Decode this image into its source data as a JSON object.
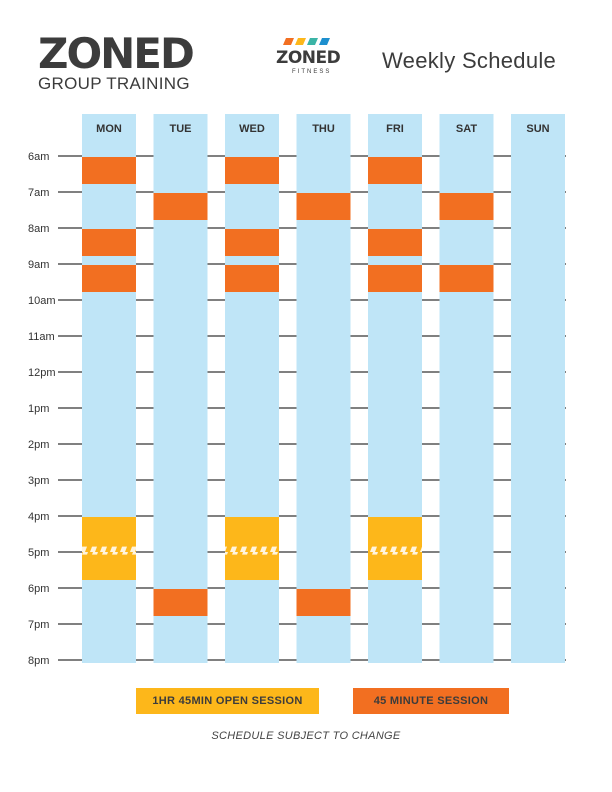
{
  "brand": {
    "title": "ZONED",
    "subtitle": "GROUP TRAINING"
  },
  "logo": {
    "word": "ZONED",
    "sub": "FITNESS",
    "stripe_colors": [
      "#f26f21",
      "#fdb71a",
      "#3bb4a6",
      "#1d8fce"
    ]
  },
  "page_title": "Weekly Schedule",
  "colors": {
    "column": "#bfe5f7",
    "session_45": "#f26f21",
    "open_session": "#fdb71a",
    "grid_line": "#000000"
  },
  "chart_data": {
    "type": "table",
    "days": [
      "MON",
      "TUE",
      "WED",
      "THU",
      "FRI",
      "SAT",
      "SUN"
    ],
    "times": [
      "6am",
      "7am",
      "8am",
      "9am",
      "10am",
      "11am",
      "12pm",
      "1pm",
      "2pm",
      "3pm",
      "4pm",
      "5pm",
      "6pm",
      "7pm",
      "8pm"
    ],
    "sessions": [
      {
        "day": "MON",
        "type": "45_minute",
        "start": 6.0,
        "end": 6.75
      },
      {
        "day": "MON",
        "type": "45_minute",
        "start": 8.0,
        "end": 8.75
      },
      {
        "day": "MON",
        "type": "45_minute",
        "start": 9.0,
        "end": 9.75
      },
      {
        "day": "MON",
        "type": "open",
        "start": 16.0,
        "end": 17.75
      },
      {
        "day": "TUE",
        "type": "45_minute",
        "start": 7.0,
        "end": 7.75
      },
      {
        "day": "TUE",
        "type": "45_minute",
        "start": 18.0,
        "end": 18.75
      },
      {
        "day": "WED",
        "type": "45_minute",
        "start": 6.0,
        "end": 6.75
      },
      {
        "day": "WED",
        "type": "45_minute",
        "start": 8.0,
        "end": 8.75
      },
      {
        "day": "WED",
        "type": "45_minute",
        "start": 9.0,
        "end": 9.75
      },
      {
        "day": "WED",
        "type": "open",
        "start": 16.0,
        "end": 17.75
      },
      {
        "day": "THU",
        "type": "45_minute",
        "start": 7.0,
        "end": 7.75
      },
      {
        "day": "THU",
        "type": "45_minute",
        "start": 18.0,
        "end": 18.75
      },
      {
        "day": "FRI",
        "type": "45_minute",
        "start": 6.0,
        "end": 6.75
      },
      {
        "day": "FRI",
        "type": "45_minute",
        "start": 8.0,
        "end": 8.75
      },
      {
        "day": "FRI",
        "type": "45_minute",
        "start": 9.0,
        "end": 9.75
      },
      {
        "day": "FRI",
        "type": "open",
        "start": 16.0,
        "end": 17.75
      },
      {
        "day": "SAT",
        "type": "45_minute",
        "start": 7.0,
        "end": 7.75
      },
      {
        "day": "SAT",
        "type": "45_minute",
        "start": 9.0,
        "end": 9.75
      }
    ],
    "legend": [
      {
        "type": "open",
        "label": "1HR 45MIN OPEN SESSION"
      },
      {
        "type": "45_minute",
        "label": "45 MINUTE SESSION"
      }
    ]
  },
  "disclaimer": "SCHEDULE SUBJECT TO CHANGE"
}
